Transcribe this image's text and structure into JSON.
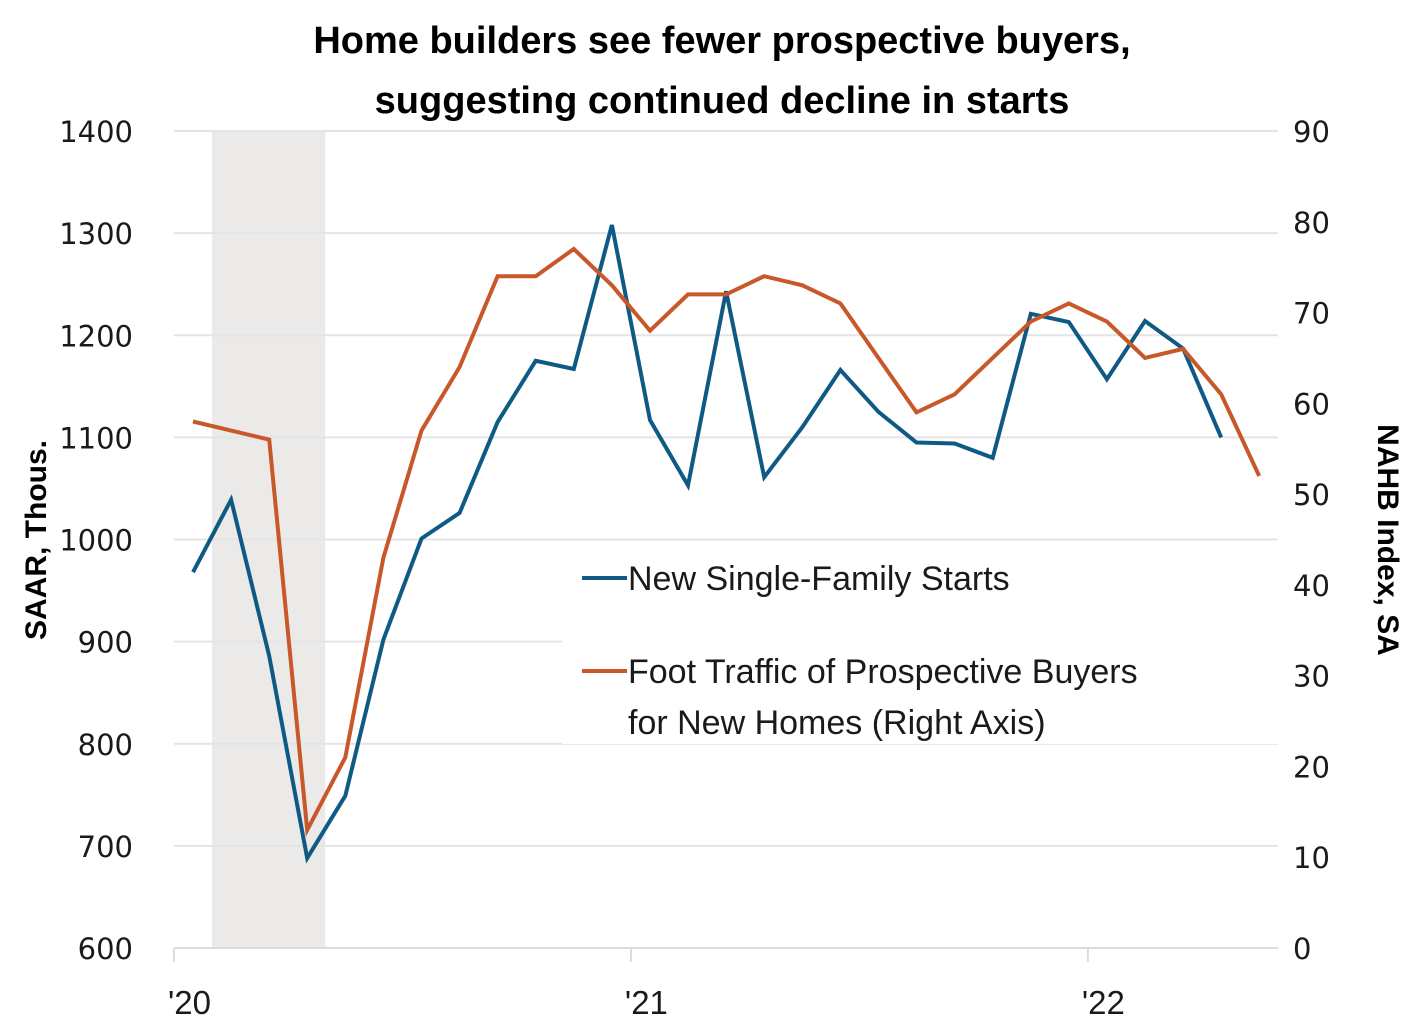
{
  "chart_data": {
    "type": "line",
    "title_lines": [
      "Home builders see fewer prospective buyers,",
      "suggesting continued decline in starts"
    ],
    "ylabel": "SAAR, Thous.",
    "ylabel_right": "NAHB Index, SA",
    "ylim": [
      600,
      1400
    ],
    "ylim_right": [
      0,
      90
    ],
    "yticks": [
      "600",
      "700",
      "800",
      "900",
      "1000",
      "1100",
      "1200",
      "1300",
      "1400"
    ],
    "yticks_right": [
      "0",
      "10",
      "20",
      "30",
      "40",
      "50",
      "60",
      "70",
      "80",
      "90"
    ],
    "xtick_labels": [
      "'20",
      "'21",
      "'22"
    ],
    "x": [
      "Jan 2020",
      "Feb 2020",
      "Mar 2020",
      "Apr 2020",
      "May 2020",
      "Jun 2020",
      "Jul 2020",
      "Aug 2020",
      "Sep 2020",
      "Oct 2020",
      "Nov 2020",
      "Dec 2020",
      "Jan 2021",
      "Feb 2021",
      "Mar 2021",
      "Apr 2021",
      "May 2021",
      "Jun 2021",
      "Jul 2021",
      "Aug 2021",
      "Sep 2021",
      "Oct 2021",
      "Nov 2021",
      "Dec 2021",
      "Jan 2022",
      "Feb 2022",
      "Mar 2022",
      "Apr 2022",
      "May 2022"
    ],
    "recession_shading": {
      "start": "Feb 2020",
      "end": "Apr 2020",
      "color": "#ebeae8"
    },
    "grid": true,
    "legend_placement": "center",
    "series": [
      {
        "name": "New Single-Family Starts",
        "axis": "left",
        "color": "#0f5a84",
        "values": [
          968,
          1039,
          886,
          688,
          749,
          902,
          1001,
          1026,
          1115,
          1175,
          1167,
          1308,
          1117,
          1053,
          1243,
          1061,
          1110,
          1166,
          1125,
          1095,
          1094,
          1080,
          1221,
          1213,
          1157,
          1214,
          1187,
          1100,
          null
        ]
      },
      {
        "name": "Foot Traffic of Prospective Buyers",
        "name_line2": "for New Homes (Right Axis)",
        "axis": "right",
        "color": "#c8582a",
        "values": [
          58,
          57,
          56,
          13,
          21,
          43,
          57,
          64,
          74,
          74,
          77,
          73,
          68,
          72,
          72,
          74,
          73,
          71,
          65,
          59,
          61,
          65,
          69,
          71,
          69,
          65,
          66,
          61,
          52
        ]
      }
    ]
  }
}
